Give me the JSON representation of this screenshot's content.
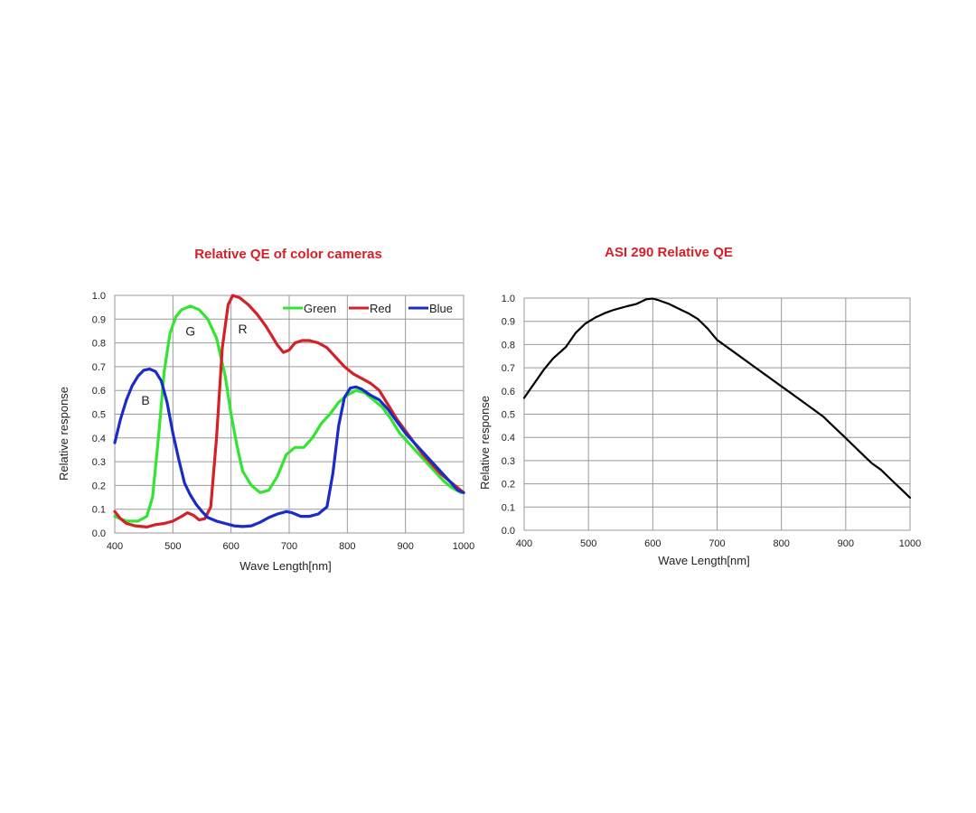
{
  "chart_data": [
    {
      "type": "line",
      "title": "Relative QE of color cameras",
      "xlabel": "Wave Length[nm]",
      "ylabel": "Relative response",
      "xlim": [
        400,
        1000
      ],
      "ylim": [
        0,
        1.0
      ],
      "x_ticks": [
        "400",
        "500",
        "600",
        "700",
        "800",
        "900",
        "1000"
      ],
      "y_ticks": [
        "0.0",
        "0.1",
        "0.2",
        "0.3",
        "0.4",
        "0.5",
        "0.6",
        "0.7",
        "0.8",
        "0.9",
        "1.0"
      ],
      "grid": true,
      "legend_position": "top-right",
      "annotations": [
        {
          "text": "B",
          "x": 453,
          "y": 0.54
        },
        {
          "text": "G",
          "x": 530,
          "y": 0.83
        },
        {
          "text": "R",
          "x": 620,
          "y": 0.84
        }
      ],
      "series": [
        {
          "name": "Green",
          "color": "#33e533",
          "points": [
            [
              400,
              0.07
            ],
            [
              420,
              0.05
            ],
            [
              440,
              0.05
            ],
            [
              455,
              0.07
            ],
            [
              465,
              0.15
            ],
            [
              475,
              0.4
            ],
            [
              485,
              0.68
            ],
            [
              495,
              0.84
            ],
            [
              505,
              0.91
            ],
            [
              515,
              0.94
            ],
            [
              530,
              0.955
            ],
            [
              545,
              0.94
            ],
            [
              560,
              0.9
            ],
            [
              575,
              0.82
            ],
            [
              590,
              0.66
            ],
            [
              600,
              0.5
            ],
            [
              610,
              0.37
            ],
            [
              620,
              0.26
            ],
            [
              635,
              0.2
            ],
            [
              650,
              0.17
            ],
            [
              665,
              0.18
            ],
            [
              680,
              0.24
            ],
            [
              695,
              0.33
            ],
            [
              710,
              0.36
            ],
            [
              725,
              0.36
            ],
            [
              740,
              0.4
            ],
            [
              755,
              0.46
            ],
            [
              770,
              0.5
            ],
            [
              785,
              0.55
            ],
            [
              800,
              0.58
            ],
            [
              815,
              0.6
            ],
            [
              830,
              0.59
            ],
            [
              845,
              0.56
            ],
            [
              860,
              0.53
            ],
            [
              875,
              0.48
            ],
            [
              890,
              0.42
            ],
            [
              905,
              0.38
            ],
            [
              920,
              0.34
            ],
            [
              935,
              0.3
            ],
            [
              950,
              0.26
            ],
            [
              965,
              0.22
            ],
            [
              980,
              0.19
            ],
            [
              995,
              0.17
            ],
            [
              1000,
              0.17
            ]
          ]
        },
        {
          "name": "Red",
          "color": "#d42027",
          "points": [
            [
              400,
              0.09
            ],
            [
              410,
              0.06
            ],
            [
              420,
              0.04
            ],
            [
              435,
              0.03
            ],
            [
              455,
              0.025
            ],
            [
              470,
              0.035
            ],
            [
              485,
              0.04
            ],
            [
              500,
              0.05
            ],
            [
              515,
              0.07
            ],
            [
              525,
              0.085
            ],
            [
              535,
              0.075
            ],
            [
              545,
              0.055
            ],
            [
              555,
              0.06
            ],
            [
              565,
              0.11
            ],
            [
              575,
              0.4
            ],
            [
              585,
              0.78
            ],
            [
              595,
              0.96
            ],
            [
              603,
              1.0
            ],
            [
              615,
              0.99
            ],
            [
              630,
              0.96
            ],
            [
              645,
              0.92
            ],
            [
              660,
              0.87
            ],
            [
              670,
              0.83
            ],
            [
              680,
              0.79
            ],
            [
              690,
              0.76
            ],
            [
              700,
              0.77
            ],
            [
              710,
              0.8
            ],
            [
              722,
              0.81
            ],
            [
              735,
              0.81
            ],
            [
              750,
              0.8
            ],
            [
              765,
              0.78
            ],
            [
              780,
              0.74
            ],
            [
              795,
              0.7
            ],
            [
              810,
              0.67
            ],
            [
              825,
              0.65
            ],
            [
              840,
              0.63
            ],
            [
              855,
              0.6
            ],
            [
              870,
              0.54
            ],
            [
              885,
              0.48
            ],
            [
              900,
              0.43
            ],
            [
              915,
              0.38
            ],
            [
              930,
              0.33
            ],
            [
              945,
              0.29
            ],
            [
              960,
              0.25
            ],
            [
              975,
              0.22
            ],
            [
              990,
              0.19
            ],
            [
              1000,
              0.17
            ]
          ]
        },
        {
          "name": "Blue",
          "color": "#1a2cc7",
          "points": [
            [
              400,
              0.38
            ],
            [
              410,
              0.48
            ],
            [
              420,
              0.56
            ],
            [
              430,
              0.62
            ],
            [
              440,
              0.66
            ],
            [
              450,
              0.685
            ],
            [
              460,
              0.69
            ],
            [
              470,
              0.68
            ],
            [
              480,
              0.64
            ],
            [
              490,
              0.55
            ],
            [
              500,
              0.42
            ],
            [
              510,
              0.31
            ],
            [
              520,
              0.21
            ],
            [
              530,
              0.16
            ],
            [
              540,
              0.12
            ],
            [
              550,
              0.09
            ],
            [
              560,
              0.065
            ],
            [
              575,
              0.05
            ],
            [
              590,
              0.04
            ],
            [
              605,
              0.03
            ],
            [
              620,
              0.027
            ],
            [
              635,
              0.03
            ],
            [
              650,
              0.045
            ],
            [
              665,
              0.065
            ],
            [
              680,
              0.08
            ],
            [
              695,
              0.09
            ],
            [
              705,
              0.085
            ],
            [
              720,
              0.07
            ],
            [
              735,
              0.07
            ],
            [
              750,
              0.08
            ],
            [
              765,
              0.11
            ],
            [
              775,
              0.25
            ],
            [
              785,
              0.45
            ],
            [
              795,
              0.57
            ],
            [
              805,
              0.61
            ],
            [
              815,
              0.615
            ],
            [
              825,
              0.605
            ],
            [
              840,
              0.58
            ],
            [
              855,
              0.56
            ],
            [
              870,
              0.52
            ],
            [
              885,
              0.47
            ],
            [
              900,
              0.42
            ],
            [
              915,
              0.38
            ],
            [
              930,
              0.34
            ],
            [
              945,
              0.3
            ],
            [
              960,
              0.26
            ],
            [
              975,
              0.22
            ],
            [
              990,
              0.18
            ],
            [
              1000,
              0.17
            ]
          ]
        }
      ]
    },
    {
      "type": "line",
      "title": "ASI 290 Relative QE",
      "xlabel": "Wave Length[nm]",
      "ylabel": "Relative response",
      "xlim": [
        400,
        1000
      ],
      "ylim": [
        0,
        1.0
      ],
      "x_ticks": [
        "400",
        "500",
        "600",
        "700",
        "800",
        "900",
        "1000"
      ],
      "y_ticks": [
        "0.0",
        "0.1",
        "0.2",
        "0.3",
        "0.4",
        "0.5",
        "0.6",
        "0.7",
        "0.8",
        "0.9",
        "1.0"
      ],
      "grid": true,
      "series": [
        {
          "color": "#000000",
          "points": [
            [
              400,
              0.57
            ],
            [
              415,
              0.63
            ],
            [
              430,
              0.69
            ],
            [
              445,
              0.74
            ],
            [
              465,
              0.79
            ],
            [
              480,
              0.85
            ],
            [
              495,
              0.89
            ],
            [
              510,
              0.915
            ],
            [
              525,
              0.935
            ],
            [
              540,
              0.95
            ],
            [
              560,
              0.965
            ],
            [
              575,
              0.975
            ],
            [
              590,
              0.995
            ],
            [
              600,
              0.998
            ],
            [
              610,
              0.99
            ],
            [
              625,
              0.975
            ],
            [
              640,
              0.955
            ],
            [
              655,
              0.935
            ],
            [
              670,
              0.91
            ],
            [
              685,
              0.87
            ],
            [
              700,
              0.82
            ],
            [
              715,
              0.79
            ],
            [
              730,
              0.76
            ],
            [
              745,
              0.73
            ],
            [
              760,
              0.7
            ],
            [
              775,
              0.67
            ],
            [
              790,
              0.64
            ],
            [
              805,
              0.61
            ],
            [
              820,
              0.58
            ],
            [
              835,
              0.55
            ],
            [
              850,
              0.52
            ],
            [
              865,
              0.49
            ],
            [
              880,
              0.45
            ],
            [
              895,
              0.41
            ],
            [
              910,
              0.37
            ],
            [
              925,
              0.33
            ],
            [
              940,
              0.29
            ],
            [
              955,
              0.26
            ],
            [
              970,
              0.22
            ],
            [
              985,
              0.18
            ],
            [
              1000,
              0.14
            ]
          ]
        }
      ]
    }
  ]
}
